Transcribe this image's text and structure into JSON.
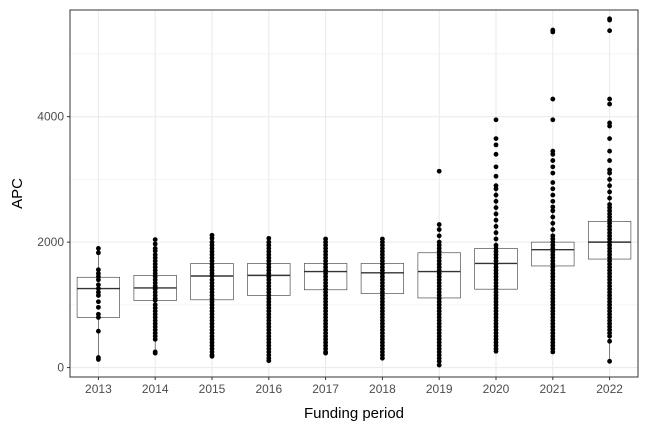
{
  "chart_data": {
    "type": "box",
    "title": "",
    "xlabel": "Funding period",
    "ylabel": "APC",
    "categories": [
      "2013",
      "2014",
      "2015",
      "2016",
      "2017",
      "2018",
      "2019",
      "2020",
      "2021",
      "2022"
    ],
    "ylim": [
      -150,
      5700
    ],
    "yticks": [
      0,
      2000,
      4000
    ],
    "grid": true,
    "legend": "none",
    "colors": {
      "box_outline": "#333333",
      "points": "#000000",
      "grid": "#ebebeb",
      "panel_border": "#333333"
    },
    "boxes": [
      {
        "category": "2013",
        "q1": 800,
        "median": 1260,
        "q3": 1440,
        "whisker_low": 130,
        "whisker_high": 1900
      },
      {
        "category": "2014",
        "q1": 1070,
        "median": 1270,
        "q3": 1470,
        "whisker_low": 230,
        "whisker_high": 2040
      },
      {
        "category": "2015",
        "q1": 1080,
        "median": 1460,
        "q3": 1660,
        "whisker_low": 180,
        "whisker_high": 2110
      },
      {
        "category": "2016",
        "q1": 1150,
        "median": 1470,
        "q3": 1660,
        "whisker_low": 110,
        "whisker_high": 2060
      },
      {
        "category": "2017",
        "q1": 1240,
        "median": 1530,
        "q3": 1660,
        "whisker_low": 230,
        "whisker_high": 2050
      },
      {
        "category": "2018",
        "q1": 1180,
        "median": 1510,
        "q3": 1660,
        "whisker_low": 150,
        "whisker_high": 2050
      },
      {
        "category": "2019",
        "q1": 1110,
        "median": 1530,
        "q3": 1830,
        "whisker_low": 40,
        "whisker_high": 2280
      },
      {
        "category": "2020",
        "q1": 1250,
        "median": 1660,
        "q3": 1900,
        "whisker_low": 260,
        "whisker_high": 2890
      },
      {
        "category": "2021",
        "q1": 1620,
        "median": 1880,
        "q3": 2000,
        "whisker_low": 250,
        "whisker_high": 2560
      },
      {
        "category": "2022",
        "q1": 1730,
        "median": 2000,
        "q3": 2330,
        "whisker_low": 100,
        "whisker_high": 3100
      }
    ],
    "points": [
      {
        "category": "2013",
        "values": [
          1900,
          1830,
          1560,
          1500,
          1450,
          1400,
          1320,
          1260,
          1200,
          1150,
          1050,
          960,
          850,
          800,
          580,
          160,
          130
        ]
      },
      {
        "category": "2014",
        "values": [
          2040,
          1970,
          1900,
          1860,
          1800,
          1750,
          1700,
          1650,
          1600,
          1550,
          1500,
          1450,
          1400,
          1350,
          1300,
          1270,
          1250,
          1200,
          1150,
          1100,
          1070,
          1000,
          950,
          900,
          850,
          800,
          750,
          700,
          650,
          600,
          550,
          500,
          450,
          250,
          230
        ]
      },
      {
        "category": "2015",
        "values": [
          2110,
          2060,
          2000,
          1950,
          1900,
          1850,
          1800,
          1750,
          1700,
          1650,
          1600,
          1550,
          1500,
          1460,
          1400,
          1350,
          1300,
          1250,
          1200,
          1150,
          1100,
          1050,
          1000,
          950,
          900,
          850,
          800,
          750,
          700,
          650,
          600,
          550,
          500,
          450,
          400,
          350,
          300,
          250,
          200,
          180
        ]
      },
      {
        "category": "2016",
        "values": [
          2060,
          2000,
          1950,
          1900,
          1850,
          1800,
          1750,
          1700,
          1650,
          1600,
          1550,
          1500,
          1450,
          1400,
          1350,
          1300,
          1250,
          1200,
          1150,
          1100,
          1050,
          1000,
          950,
          900,
          850,
          800,
          750,
          700,
          650,
          600,
          550,
          500,
          450,
          400,
          350,
          300,
          250,
          200,
          150,
          110
        ]
      },
      {
        "category": "2017",
        "values": [
          2050,
          2000,
          1950,
          1900,
          1850,
          1800,
          1750,
          1700,
          1650,
          1600,
          1550,
          1500,
          1450,
          1400,
          1350,
          1300,
          1250,
          1200,
          1150,
          1100,
          1050,
          1000,
          950,
          900,
          850,
          800,
          750,
          700,
          650,
          600,
          550,
          500,
          450,
          400,
          350,
          300,
          250,
          230
        ]
      },
      {
        "category": "2018",
        "values": [
          2050,
          2000,
          1950,
          1900,
          1850,
          1800,
          1750,
          1700,
          1650,
          1600,
          1550,
          1500,
          1450,
          1400,
          1350,
          1300,
          1250,
          1200,
          1150,
          1100,
          1050,
          1000,
          950,
          900,
          850,
          800,
          750,
          700,
          650,
          600,
          550,
          500,
          450,
          400,
          350,
          300,
          250,
          200,
          150
        ]
      },
      {
        "category": "2019",
        "values": [
          3130,
          2280,
          2200,
          2100,
          2000,
          1950,
          1900,
          1850,
          1800,
          1750,
          1700,
          1650,
          1600,
          1550,
          1500,
          1450,
          1400,
          1350,
          1300,
          1250,
          1200,
          1150,
          1100,
          1050,
          1000,
          950,
          900,
          850,
          800,
          750,
          700,
          650,
          600,
          550,
          500,
          450,
          400,
          350,
          300,
          250,
          200,
          150,
          100,
          40
        ]
      },
      {
        "category": "2020",
        "values": [
          3950,
          3650,
          3550,
          3400,
          3200,
          3050,
          2900,
          2850,
          2750,
          2650,
          2550,
          2450,
          2350,
          2250,
          2150,
          2050,
          1950,
          1900,
          1850,
          1800,
          1750,
          1700,
          1650,
          1600,
          1550,
          1500,
          1450,
          1400,
          1350,
          1300,
          1250,
          1200,
          1150,
          1100,
          1050,
          1000,
          950,
          900,
          850,
          800,
          750,
          700,
          650,
          600,
          550,
          500,
          450,
          400,
          350,
          300,
          260
        ]
      },
      {
        "category": "2021",
        "values": [
          5380,
          5350,
          4280,
          3950,
          3450,
          3400,
          3300,
          3200,
          3100,
          2950,
          2850,
          2750,
          2650,
          2560,
          2500,
          2400,
          2300,
          2200,
          2100,
          2050,
          2000,
          1950,
          1900,
          1850,
          1800,
          1750,
          1700,
          1650,
          1600,
          1550,
          1500,
          1450,
          1400,
          1350,
          1300,
          1250,
          1200,
          1150,
          1100,
          1050,
          1000,
          950,
          900,
          850,
          800,
          750,
          700,
          650,
          600,
          550,
          500,
          450,
          400,
          350,
          300,
          250
        ]
      },
      {
        "category": "2022",
        "values": [
          5560,
          5540,
          5370,
          4280,
          4200,
          3900,
          3850,
          3650,
          3450,
          3300,
          3150,
          3100,
          3000,
          2900,
          2800,
          2700,
          2600,
          2550,
          2500,
          2450,
          2400,
          2350,
          2300,
          2250,
          2200,
          2150,
          2100,
          2050,
          2000,
          1950,
          1900,
          1850,
          1800,
          1750,
          1700,
          1650,
          1600,
          1550,
          1500,
          1450,
          1400,
          1350,
          1300,
          1250,
          1200,
          1150,
          1100,
          1050,
          1000,
          950,
          900,
          850,
          800,
          750,
          700,
          650,
          600,
          550,
          500,
          420,
          100
        ]
      }
    ]
  }
}
